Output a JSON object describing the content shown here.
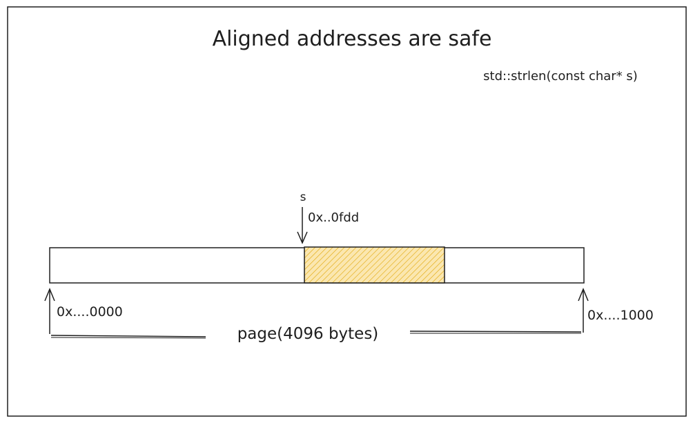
{
  "title": "Aligned addresses are safe",
  "function_signature": "std::strlen(const char* s)",
  "pointer": {
    "name": "s",
    "address": "0x..0fdd"
  },
  "page": {
    "start_address": "0x....0000",
    "end_address": "0x....1000",
    "label": "page(4096 bytes)"
  },
  "colors": {
    "stroke": "#1e1e1e",
    "highlight_fill": "#f5c542",
    "highlight_hatch": "#e0a400",
    "background": "#ffffff"
  }
}
